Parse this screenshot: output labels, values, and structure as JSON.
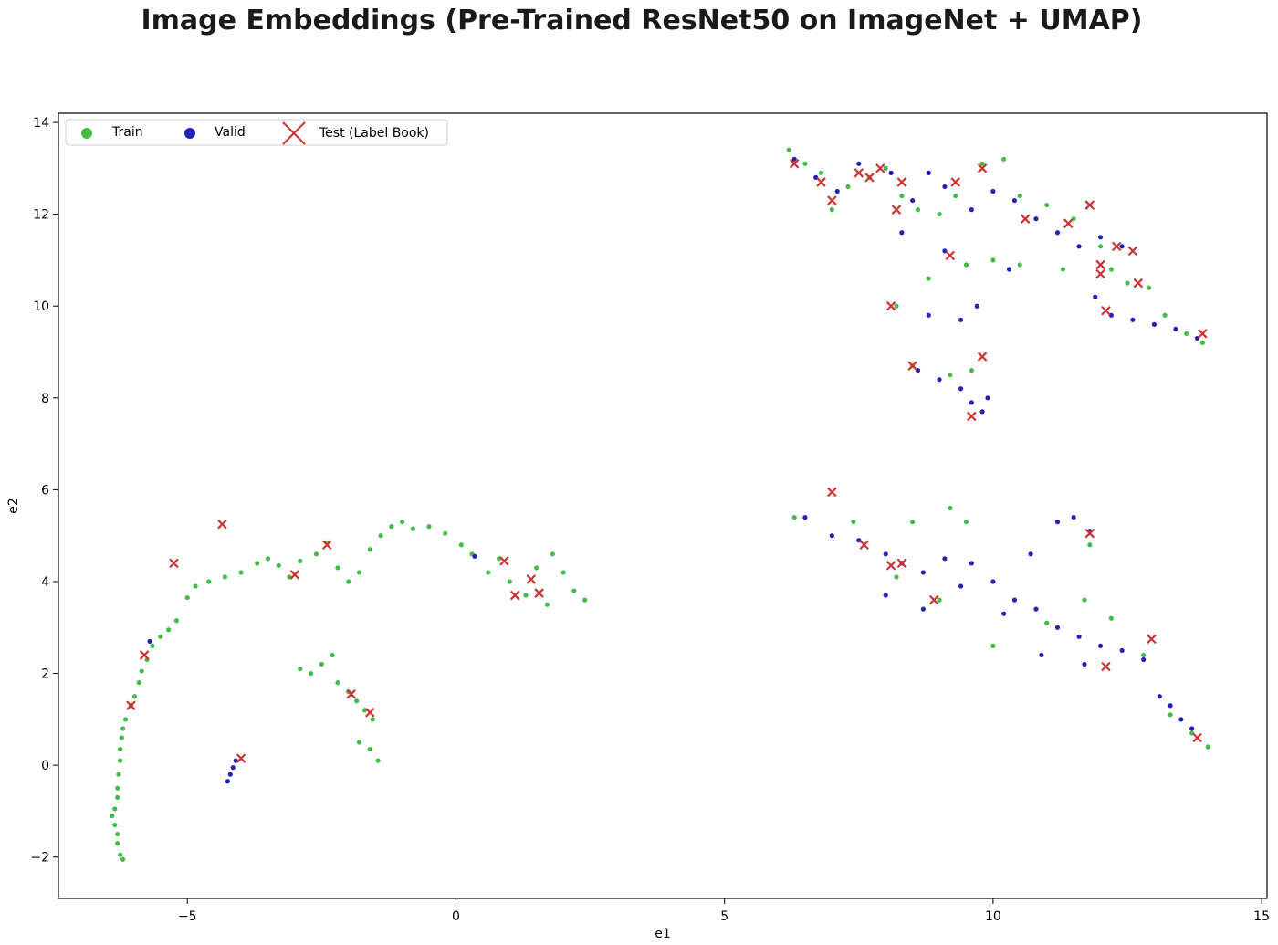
{
  "chart_data": {
    "type": "scatter",
    "title": "Image Embeddings (Pre-Trained ResNet50 on ImageNet + UMAP)",
    "xlabel": "e1",
    "ylabel": "e2",
    "xlim": [
      -7.4,
      15.1
    ],
    "ylim": [
      -2.9,
      14.2
    ],
    "x_ticks": [
      -5,
      0,
      5,
      10,
      15
    ],
    "y_ticks": [
      -2,
      0,
      2,
      4,
      6,
      8,
      10,
      12,
      14
    ],
    "x_tick_labels": [
      "−5",
      "0",
      "5",
      "10",
      "15"
    ],
    "y_tick_labels": [
      "−2",
      "0",
      "2",
      "4",
      "6",
      "8",
      "10",
      "12",
      "14"
    ],
    "grid": false,
    "legend_position": "top-left",
    "legend": [
      "Train",
      "Valid",
      "Test (Label Book)"
    ],
    "colors": {
      "Train": "#44bb44",
      "Valid": "#2222bb",
      "Test": "#cc3333"
    },
    "series": [
      {
        "name": "Train",
        "marker": "dot",
        "color": "#44bb44",
        "points": [
          [
            -6.2,
            -2.05
          ],
          [
            -6.25,
            -1.95
          ],
          [
            -6.3,
            -1.7
          ],
          [
            -6.3,
            -1.5
          ],
          [
            -6.35,
            -1.3
          ],
          [
            -6.4,
            -1.1
          ],
          [
            -6.35,
            -0.95
          ],
          [
            -6.3,
            -0.7
          ],
          [
            -6.3,
            -0.5
          ],
          [
            -6.28,
            -0.2
          ],
          [
            -6.25,
            0.1
          ],
          [
            -6.25,
            0.35
          ],
          [
            -6.22,
            0.6
          ],
          [
            -6.2,
            0.8
          ],
          [
            -6.15,
            1.0
          ],
          [
            -6.05,
            1.3
          ],
          [
            -5.98,
            1.5
          ],
          [
            -5.9,
            1.8
          ],
          [
            -5.85,
            2.05
          ],
          [
            -5.75,
            2.3
          ],
          [
            -5.65,
            2.6
          ],
          [
            -5.5,
            2.8
          ],
          [
            -5.35,
            2.95
          ],
          [
            -5.2,
            3.15
          ],
          [
            -5.0,
            3.65
          ],
          [
            -4.85,
            3.9
          ],
          [
            -4.6,
            4.0
          ],
          [
            -4.3,
            4.1
          ],
          [
            -4.0,
            4.2
          ],
          [
            -3.7,
            4.4
          ],
          [
            -3.5,
            4.5
          ],
          [
            -3.3,
            4.35
          ],
          [
            -3.1,
            4.1
          ],
          [
            -2.9,
            4.45
          ],
          [
            -2.6,
            4.6
          ],
          [
            -2.4,
            4.85
          ],
          [
            -2.2,
            4.3
          ],
          [
            -2.0,
            4.0
          ],
          [
            -1.8,
            4.2
          ],
          [
            -1.6,
            4.7
          ],
          [
            -1.4,
            5.0
          ],
          [
            -1.2,
            5.2
          ],
          [
            -1.0,
            5.3
          ],
          [
            -0.8,
            5.15
          ],
          [
            -0.5,
            5.2
          ],
          [
            -0.2,
            5.05
          ],
          [
            0.1,
            4.8
          ],
          [
            0.3,
            4.6
          ],
          [
            0.6,
            4.2
          ],
          [
            0.8,
            4.5
          ],
          [
            1.0,
            4.0
          ],
          [
            1.3,
            3.7
          ],
          [
            1.5,
            4.3
          ],
          [
            1.8,
            4.6
          ],
          [
            2.0,
            4.2
          ],
          [
            2.2,
            3.8
          ],
          [
            2.4,
            3.6
          ],
          [
            1.7,
            3.5
          ],
          [
            -2.9,
            2.1
          ],
          [
            -2.7,
            2.0
          ],
          [
            -2.5,
            2.2
          ],
          [
            -2.3,
            2.4
          ],
          [
            -2.2,
            1.8
          ],
          [
            -2.0,
            1.6
          ],
          [
            -1.85,
            1.4
          ],
          [
            -1.7,
            1.2
          ],
          [
            -1.55,
            1.0
          ],
          [
            -1.8,
            0.5
          ],
          [
            -1.6,
            0.35
          ],
          [
            -1.45,
            0.1
          ],
          [
            6.2,
            13.4
          ],
          [
            6.5,
            13.1
          ],
          [
            6.8,
            12.9
          ],
          [
            7.0,
            12.1
          ],
          [
            7.3,
            12.6
          ],
          [
            7.7,
            12.8
          ],
          [
            8.0,
            13.0
          ],
          [
            8.3,
            12.4
          ],
          [
            8.6,
            12.1
          ],
          [
            9.0,
            12.0
          ],
          [
            9.3,
            12.4
          ],
          [
            9.8,
            13.1
          ],
          [
            10.2,
            13.2
          ],
          [
            10.5,
            12.4
          ],
          [
            11.0,
            12.2
          ],
          [
            11.5,
            11.9
          ],
          [
            12.0,
            11.3
          ],
          [
            12.2,
            10.8
          ],
          [
            12.5,
            10.5
          ],
          [
            12.9,
            10.4
          ],
          [
            13.2,
            9.8
          ],
          [
            13.6,
            9.4
          ],
          [
            13.9,
            9.2
          ],
          [
            8.2,
            10.0
          ],
          [
            9.5,
            10.9
          ],
          [
            10.0,
            11.0
          ],
          [
            10.5,
            10.9
          ],
          [
            8.8,
            10.6
          ],
          [
            11.3,
            10.8
          ],
          [
            8.5,
            8.7
          ],
          [
            9.2,
            8.5
          ],
          [
            9.6,
            8.6
          ],
          [
            6.3,
            5.4
          ],
          [
            7.4,
            5.3
          ],
          [
            8.5,
            5.3
          ],
          [
            9.2,
            5.6
          ],
          [
            9.5,
            5.3
          ],
          [
            8.2,
            4.1
          ],
          [
            9.0,
            3.6
          ],
          [
            10.0,
            2.6
          ],
          [
            11.0,
            3.1
          ],
          [
            11.7,
            3.6
          ],
          [
            12.2,
            3.2
          ],
          [
            12.8,
            2.4
          ],
          [
            13.3,
            1.1
          ],
          [
            13.7,
            0.7
          ],
          [
            14.0,
            0.4
          ],
          [
            11.8,
            4.8
          ]
        ]
      },
      {
        "name": "Valid",
        "marker": "dot",
        "color": "#2222bb",
        "points": [
          [
            -4.25,
            -0.35
          ],
          [
            -4.2,
            -0.2
          ],
          [
            -4.15,
            -0.05
          ],
          [
            -4.1,
            0.1
          ],
          [
            -5.7,
            2.7
          ],
          [
            0.35,
            4.55
          ],
          [
            6.3,
            13.2
          ],
          [
            6.7,
            12.8
          ],
          [
            7.1,
            12.5
          ],
          [
            7.5,
            13.1
          ],
          [
            8.1,
            12.9
          ],
          [
            8.5,
            12.3
          ],
          [
            8.8,
            12.9
          ],
          [
            9.1,
            12.6
          ],
          [
            9.6,
            12.1
          ],
          [
            10.0,
            12.5
          ],
          [
            10.4,
            12.3
          ],
          [
            10.8,
            11.9
          ],
          [
            11.2,
            11.6
          ],
          [
            11.6,
            11.3
          ],
          [
            12.0,
            11.5
          ],
          [
            12.4,
            11.3
          ],
          [
            11.9,
            10.2
          ],
          [
            12.2,
            9.8
          ],
          [
            12.6,
            9.7
          ],
          [
            13.0,
            9.6
          ],
          [
            13.4,
            9.5
          ],
          [
            13.8,
            9.3
          ],
          [
            10.3,
            10.8
          ],
          [
            8.8,
            9.8
          ],
          [
            9.4,
            9.7
          ],
          [
            9.7,
            10.0
          ],
          [
            8.6,
            8.6
          ],
          [
            9.0,
            8.4
          ],
          [
            9.4,
            8.2
          ],
          [
            9.6,
            7.9
          ],
          [
            9.8,
            7.7
          ],
          [
            9.9,
            8.0
          ],
          [
            8.3,
            11.6
          ],
          [
            9.1,
            11.2
          ],
          [
            6.5,
            5.4
          ],
          [
            7.0,
            5.0
          ],
          [
            7.5,
            4.9
          ],
          [
            8.0,
            4.6
          ],
          [
            8.3,
            4.4
          ],
          [
            8.7,
            4.2
          ],
          [
            9.1,
            4.5
          ],
          [
            9.6,
            4.4
          ],
          [
            10.0,
            4.0
          ],
          [
            10.4,
            3.6
          ],
          [
            10.8,
            3.4
          ],
          [
            11.2,
            3.0
          ],
          [
            11.6,
            2.8
          ],
          [
            12.0,
            2.6
          ],
          [
            12.4,
            2.5
          ],
          [
            12.8,
            2.3
          ],
          [
            10.7,
            4.6
          ],
          [
            11.2,
            5.3
          ],
          [
            11.5,
            5.4
          ],
          [
            11.8,
            5.1
          ],
          [
            8.0,
            3.7
          ],
          [
            8.7,
            3.4
          ],
          [
            9.4,
            3.9
          ],
          [
            10.2,
            3.3
          ],
          [
            10.9,
            2.4
          ],
          [
            11.7,
            2.2
          ],
          [
            13.1,
            1.5
          ],
          [
            13.3,
            1.3
          ],
          [
            13.5,
            1.0
          ],
          [
            13.7,
            0.8
          ]
        ]
      },
      {
        "name": "Test (Label Book)",
        "marker": "x",
        "color": "#cc3333",
        "points": [
          [
            -6.05,
            1.3
          ],
          [
            -5.8,
            2.4
          ],
          [
            -5.25,
            4.4
          ],
          [
            -4.35,
            5.25
          ],
          [
            -3.0,
            4.15
          ],
          [
            -2.4,
            4.8
          ],
          [
            -4.0,
            0.15
          ],
          [
            -1.95,
            1.55
          ],
          [
            -1.6,
            1.15
          ],
          [
            0.9,
            4.45
          ],
          [
            1.1,
            3.7
          ],
          [
            1.4,
            4.05
          ],
          [
            1.55,
            3.75
          ],
          [
            6.3,
            13.1
          ],
          [
            6.8,
            12.7
          ],
          [
            7.0,
            12.3
          ],
          [
            7.5,
            12.9
          ],
          [
            7.7,
            12.8
          ],
          [
            7.9,
            13.0
          ],
          [
            8.3,
            12.7
          ],
          [
            8.2,
            12.1
          ],
          [
            9.3,
            12.7
          ],
          [
            9.8,
            13.0
          ],
          [
            10.6,
            11.9
          ],
          [
            11.4,
            11.8
          ],
          [
            11.8,
            12.2
          ],
          [
            12.3,
            11.3
          ],
          [
            12.6,
            11.2
          ],
          [
            12.0,
            10.9
          ],
          [
            12.0,
            10.7
          ],
          [
            12.7,
            10.5
          ],
          [
            12.1,
            9.9
          ],
          [
            13.9,
            9.4
          ],
          [
            8.1,
            10.0
          ],
          [
            9.2,
            11.1
          ],
          [
            8.5,
            8.7
          ],
          [
            9.8,
            8.9
          ],
          [
            9.6,
            7.6
          ],
          [
            7.0,
            5.95
          ],
          [
            7.6,
            4.8
          ],
          [
            8.1,
            4.35
          ],
          [
            8.3,
            4.4
          ],
          [
            8.9,
            3.6
          ],
          [
            11.8,
            5.05
          ],
          [
            12.1,
            2.15
          ],
          [
            12.95,
            2.75
          ],
          [
            13.8,
            0.6
          ]
        ]
      }
    ]
  }
}
